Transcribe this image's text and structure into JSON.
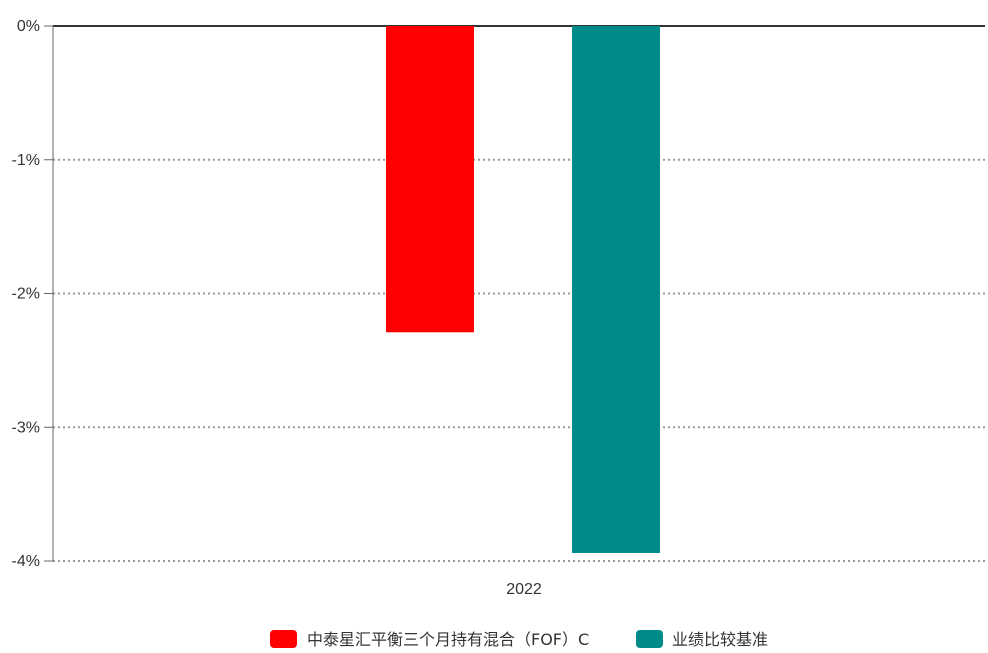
{
  "chart_data": {
    "type": "bar",
    "categories": [
      "2022"
    ],
    "series": [
      {
        "name": "中泰星汇平衡三个月持有混合（FOF）C",
        "values": [
          -2.29
        ],
        "color": "#ff0000"
      },
      {
        "name": "业绩比较基准",
        "values": [
          -3.94
        ],
        "color": "#008b8b"
      }
    ],
    "y_ticks": [
      "0%",
      "-1%",
      "-2%",
      "-3%",
      "-4%"
    ],
    "y_tick_values": [
      0,
      -1,
      -2,
      -3,
      -4
    ],
    "ylim": [
      -4,
      0
    ],
    "grid": true,
    "legend_position": "bottom-center"
  }
}
